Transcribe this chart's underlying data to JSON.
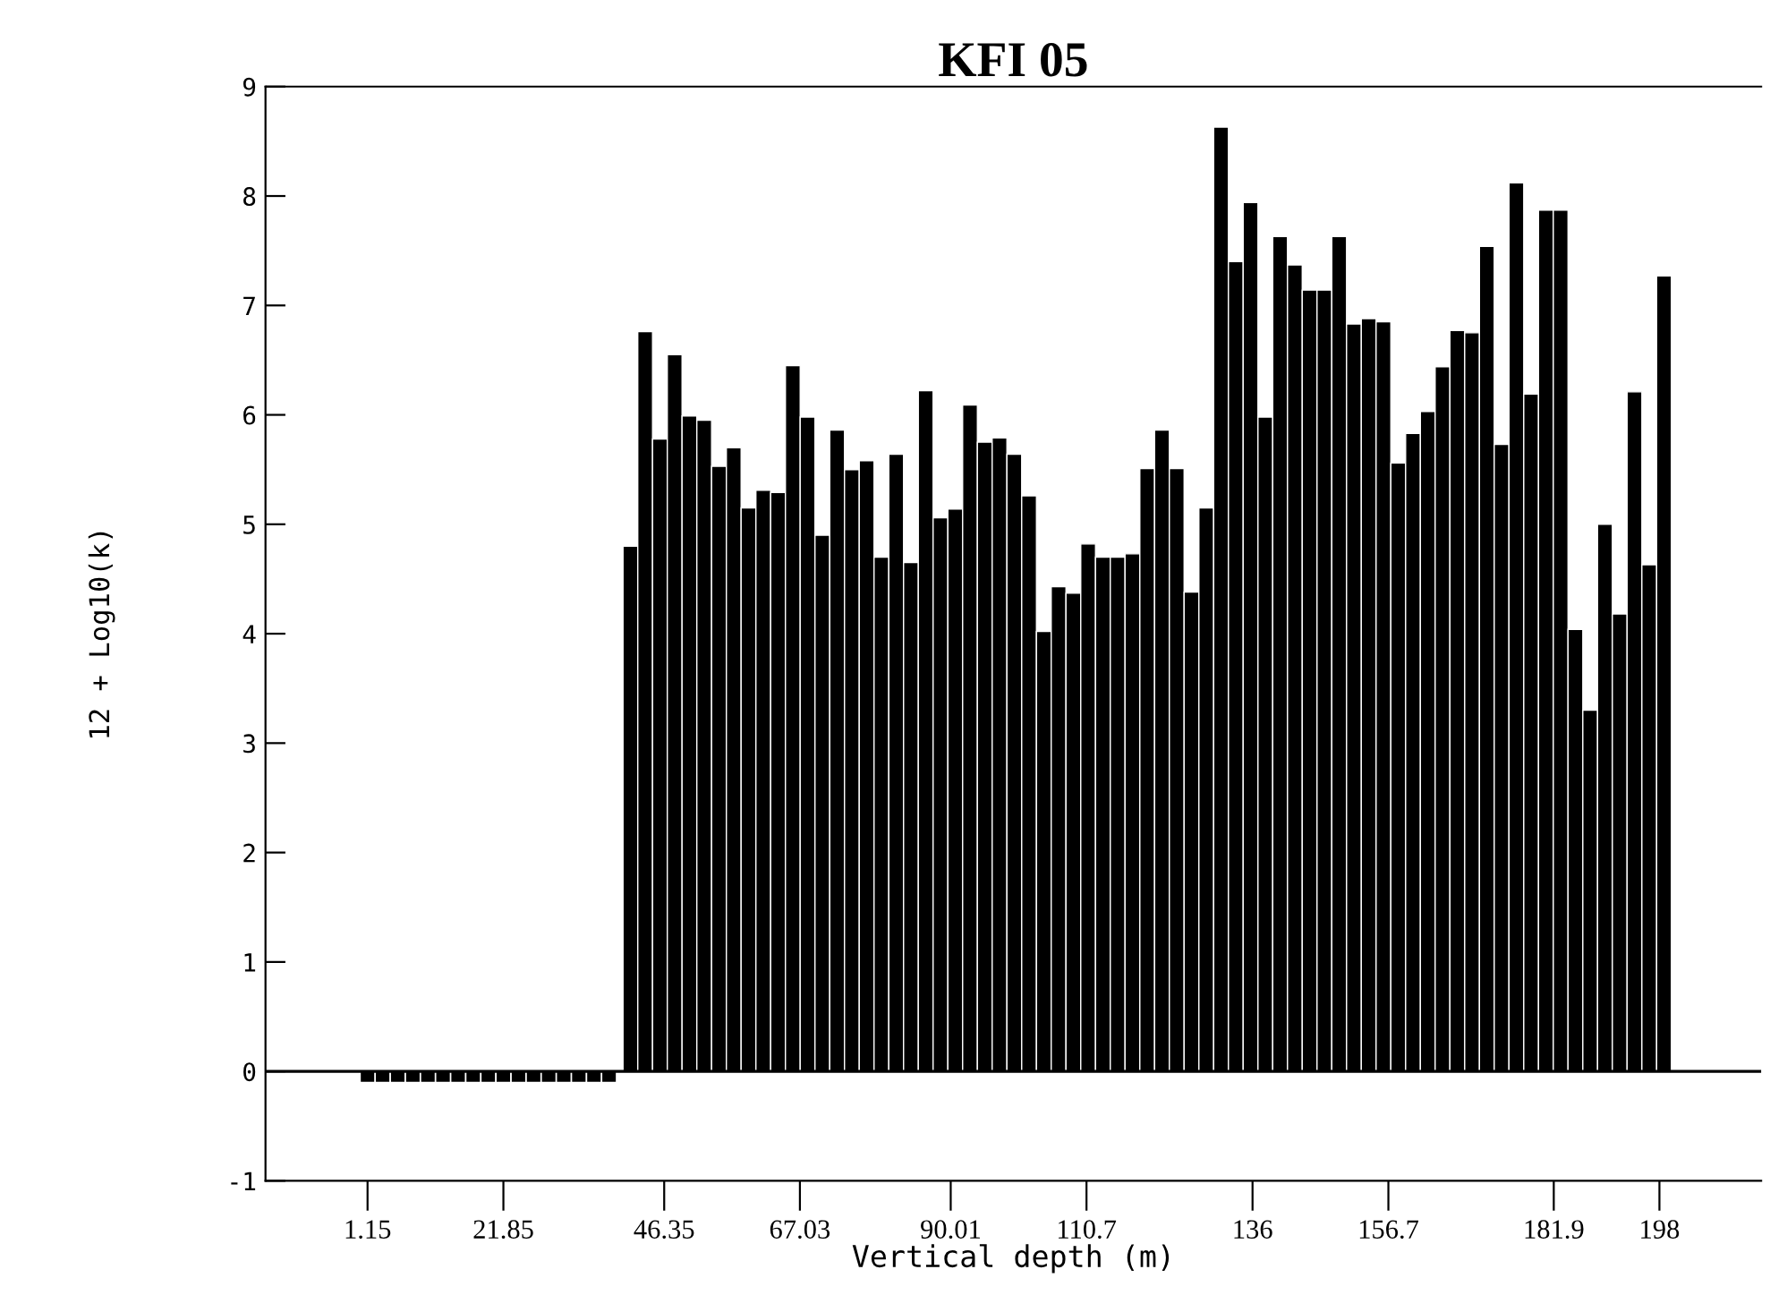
{
  "chart_data": {
    "type": "bar",
    "title": "KFI 05",
    "xlabel": "Vertical depth (m)",
    "ylabel": "12 + Log10(k)",
    "x": [
      1.15,
      3.45,
      5.75,
      8.05,
      10.35,
      12.65,
      14.95,
      17.25,
      19.55,
      21.85,
      24.15,
      26.45,
      28.75,
      31.05,
      33.35,
      35.65,
      37.95,
      41.2,
      43.45,
      45.7,
      47.95,
      50.2,
      52.45,
      54.7,
      56.95,
      59.2,
      61.45,
      63.7,
      65.95,
      68.2,
      70.45,
      72.7,
      74.95,
      77.2,
      79.45,
      81.7,
      83.95,
      86.2,
      88.45,
      90.7,
      92.95,
      95.2,
      97.45,
      99.7,
      101.95,
      104.2,
      106.45,
      108.7,
      110.95,
      113.2,
      115.45,
      117.7,
      119.95,
      122.2,
      124.45,
      126.7,
      128.95,
      131.2,
      133.45,
      135.7,
      137.95,
      140.2,
      142.45,
      144.7,
      146.95,
      149.2,
      151.45,
      153.7,
      155.95,
      158.2,
      160.45,
      162.7,
      164.95,
      167.2,
      169.45,
      171.7,
      173.95,
      176.2,
      178.45,
      180.7,
      182.95,
      185.2,
      187.45,
      189.7,
      191.95,
      194.2,
      196.45,
      198.7
    ],
    "values": [
      -0.1,
      -0.1,
      -0.1,
      -0.1,
      -0.1,
      -0.1,
      -0.1,
      -0.1,
      -0.1,
      -0.1,
      -0.1,
      -0.1,
      -0.1,
      -0.1,
      -0.1,
      -0.1,
      -0.1,
      4.8,
      6.76,
      5.78,
      6.55,
      5.99,
      5.95,
      5.53,
      5.7,
      5.15,
      5.31,
      5.29,
      6.45,
      5.98,
      4.9,
      5.86,
      5.5,
      5.58,
      4.7,
      5.64,
      4.65,
      6.22,
      5.06,
      5.14,
      6.09,
      5.75,
      5.79,
      5.64,
      5.26,
      4.02,
      4.43,
      4.37,
      4.82,
      4.7,
      4.7,
      4.73,
      5.51,
      5.86,
      5.51,
      4.38,
      5.15,
      8.63,
      7.4,
      7.94,
      5.98,
      7.63,
      7.37,
      7.14,
      7.14,
      7.63,
      6.83,
      6.88,
      6.85,
      5.56,
      5.83,
      6.03,
      6.44,
      6.77,
      6.75,
      7.54,
      5.73,
      8.12,
      6.19,
      7.87,
      7.87,
      4.04,
      3.3,
      5.0,
      4.18,
      6.21,
      4.63,
      7.27
    ],
    "color": "#000000",
    "xlim": [
      -14.4,
      213.5
    ],
    "xticks": [
      1.15,
      21.85,
      46.35,
      67.03,
      90.01,
      110.7,
      136,
      156.7,
      181.9,
      198
    ],
    "ylim": [
      -1,
      9
    ],
    "yticks": [
      -1,
      0,
      1,
      2,
      3,
      4,
      5,
      6,
      7,
      8,
      9
    ],
    "ref_lines": [
      {
        "axis": "y",
        "value": 0,
        "color": "#000000"
      }
    ],
    "grid": false
  }
}
